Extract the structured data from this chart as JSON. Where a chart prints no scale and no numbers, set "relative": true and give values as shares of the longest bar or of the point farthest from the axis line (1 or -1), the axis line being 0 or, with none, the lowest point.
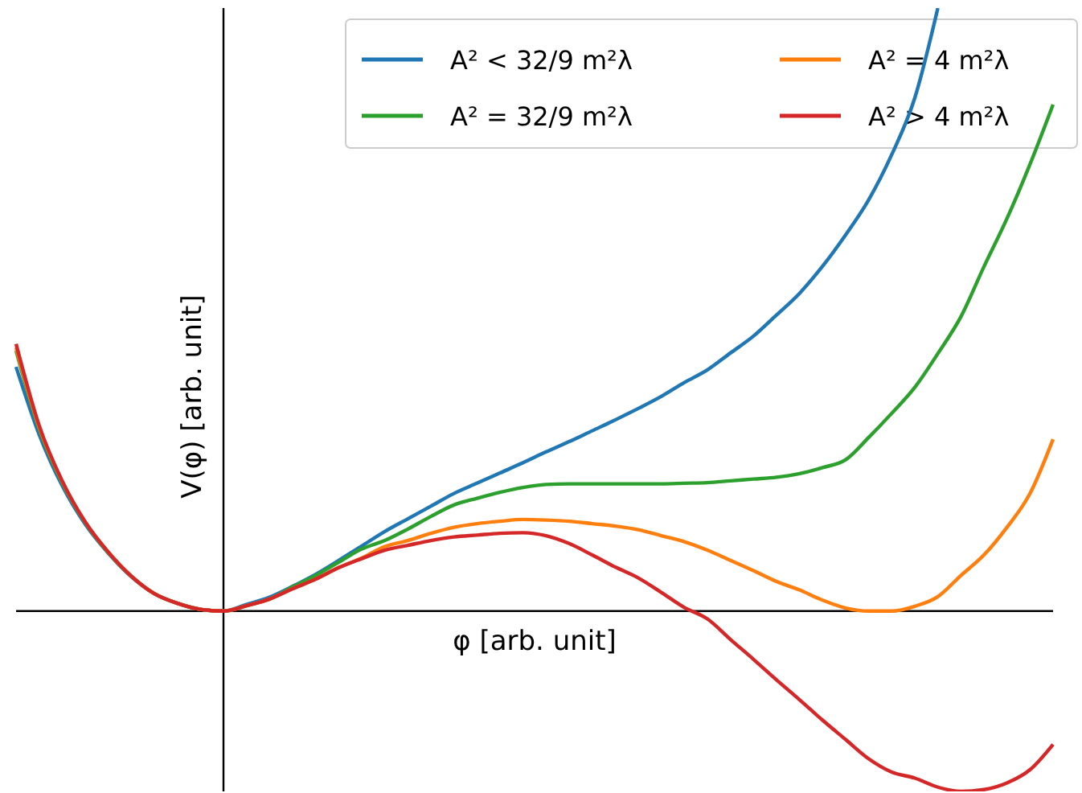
{
  "chart_data": {
    "type": "line",
    "relative": true,
    "xlabel": "φ [arb. unit]",
    "ylabel": "V(φ) [arb. unit]",
    "legend": "top right",
    "categories": [
      null,
      null,
      null,
      null,
      null,
      null,
      null,
      null,
      null,
      null,
      null,
      null,
      null,
      null,
      null,
      null,
      null,
      null,
      null,
      null,
      null,
      null,
      null,
      null,
      null,
      null,
      null,
      null,
      null,
      null,
      null,
      null,
      null,
      null,
      null,
      null,
      null,
      null,
      null,
      null,
      null,
      null,
      null,
      null,
      null,
      null
    ],
    "series": [
      {
        "name": "A² < 32/9 m²λ",
        "color": "#1f77b4",
        "values": [
          0.405,
          0.293,
          0.208,
          0.144,
          0.096,
          0.057,
          0.029,
          0.013,
          0.003,
          0,
          0.011,
          0.023,
          0.041,
          0.061,
          0.084,
          0.108,
          0.132,
          0.153,
          0.174,
          0.195,
          0.212,
          0.229,
          0.246,
          0.264,
          0.281,
          0.299,
          0.317,
          0.336,
          0.356,
          0.379,
          0.4,
          0.428,
          0.456,
          0.491,
          0.527,
          0.572,
          0.624,
          0.682,
          0.757,
          0.851,
          1.0,
          null,
          null,
          null,
          null,
          null
        ]
      },
      {
        "name": "A² = 32/9 m²λ",
        "color": "#2ca02c",
        "values": [
          0.432,
          0.302,
          0.213,
          0.147,
          0.097,
          0.058,
          0.029,
          0.013,
          0.003,
          0,
          0.009,
          0.02,
          0.04,
          0.059,
          0.081,
          0.103,
          0.117,
          0.136,
          0.157,
          0.176,
          0.187,
          0.197,
          0.205,
          0.21,
          0.211,
          0.211,
          0.211,
          0.211,
          0.211,
          0.212,
          0.213,
          0.216,
          0.219,
          0.222,
          0.228,
          0.238,
          0.251,
          0.288,
          0.328,
          0.371,
          0.427,
          0.488,
          0.571,
          0.651,
          0.741,
          0.84
        ]
      },
      {
        "name": "A² = 4 m²λ",
        "color": "#ff7f0e",
        "values": [
          0.437,
          0.305,
          0.215,
          0.148,
          0.098,
          0.058,
          0.029,
          0.013,
          0.003,
          0,
          0.009,
          0.02,
          0.037,
          0.053,
          0.072,
          0.088,
          0.107,
          0.117,
          0.129,
          0.139,
          0.145,
          0.149,
          0.152,
          0.151,
          0.149,
          0.145,
          0.141,
          0.135,
          0.125,
          0.115,
          0.101,
          0.084,
          0.067,
          0.049,
          0.035,
          0.018,
          0.005,
          0,
          0,
          0.008,
          0.024,
          0.059,
          0.093,
          0.139,
          0.195,
          0.285
        ]
      },
      {
        "name": "A² > 4 m²λ",
        "color": "#d62728",
        "values": [
          0.443,
          0.308,
          0.216,
          0.148,
          0.098,
          0.058,
          0.029,
          0.013,
          0.003,
          0,
          0.009,
          0.02,
          0.037,
          0.053,
          0.072,
          0.087,
          0.101,
          0.109,
          0.117,
          0.123,
          0.126,
          0.129,
          0.13,
          0.125,
          0.112,
          0.093,
          0.073,
          0.055,
          0.031,
          0.006,
          -0.013,
          -0.047,
          -0.08,
          -0.114,
          -0.147,
          -0.181,
          -0.213,
          -0.245,
          -0.267,
          -0.277,
          -0.292,
          -0.299,
          -0.296,
          -0.285,
          -0.263,
          -0.221
        ]
      }
    ]
  }
}
